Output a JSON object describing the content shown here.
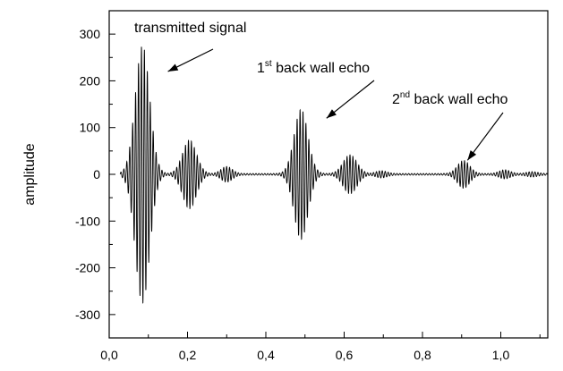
{
  "chart_data": {
    "type": "line",
    "title": "",
    "xlabel": "",
    "ylabel": "amplitude",
    "xlim": [
      0.0,
      1.12
    ],
    "ylim": [
      -350,
      350
    ],
    "x_ticks": [
      0.0,
      0.2,
      0.4,
      0.6,
      0.8,
      1.0
    ],
    "x_tick_labels": [
      "0,0",
      "0,2",
      "0,4",
      "0,6",
      "0,8",
      "1,0"
    ],
    "y_ticks": [
      -300,
      -200,
      -100,
      0,
      100,
      200,
      300
    ],
    "y_tick_labels": [
      "-300",
      "-200",
      "-100",
      "0",
      "100",
      "200",
      "300"
    ],
    "grid": false,
    "series": [
      {
        "waveform": "oscillating decaying ultrasonic pulses",
        "carrier_period": 0.0075,
        "envelope_peaks": [
          {
            "x": 0.085,
            "amplitude": 275,
            "width": 0.026
          },
          {
            "x": 0.205,
            "amplitude": 72,
            "width": 0.025
          },
          {
            "x": 0.3,
            "amplitude": 15,
            "width": 0.02
          },
          {
            "x": 0.49,
            "amplitude": 138,
            "width": 0.025
          },
          {
            "x": 0.615,
            "amplitude": 40,
            "width": 0.025
          },
          {
            "x": 0.695,
            "amplitude": 6,
            "width": 0.02
          },
          {
            "x": 0.905,
            "amplitude": 28,
            "width": 0.022
          },
          {
            "x": 1.01,
            "amplitude": 8,
            "width": 0.02
          },
          {
            "x": 1.08,
            "amplitude": 4,
            "width": 0.02
          }
        ]
      }
    ],
    "annotations": [
      {
        "text": "transmitted signal",
        "target_x": 0.15,
        "target_y": 220
      },
      {
        "prefix": "1",
        "superscript": "st",
        "text": " back wall echo",
        "target_x": 0.555,
        "target_y": 120
      },
      {
        "prefix": "2",
        "superscript": "nd",
        "text": " back wall echo",
        "target_x": 0.915,
        "target_y": 30
      }
    ]
  }
}
